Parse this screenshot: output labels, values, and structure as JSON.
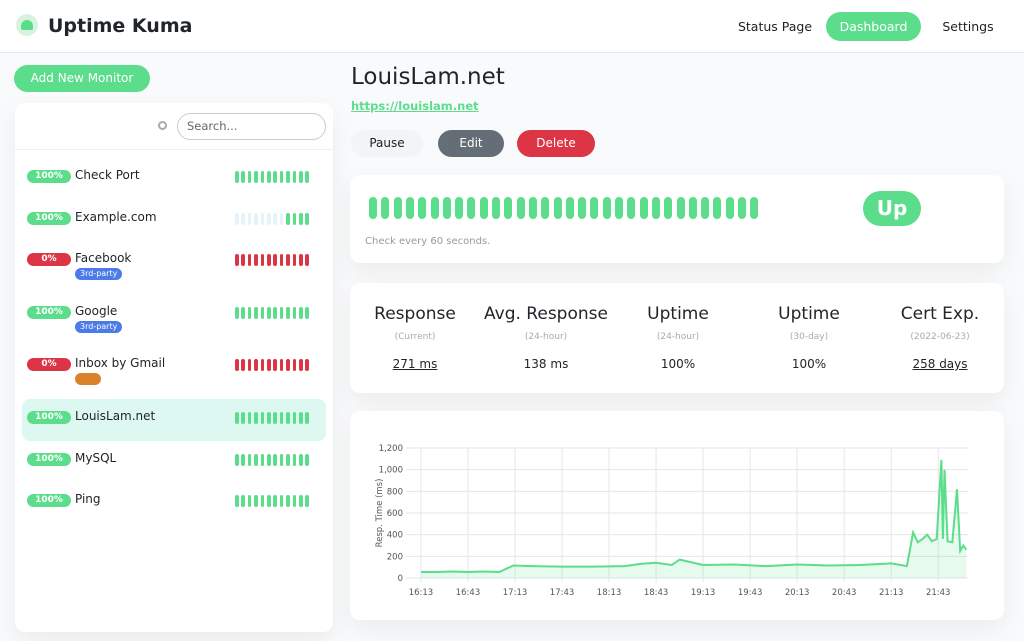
{
  "header": {
    "title": "Uptime Kuma",
    "nav": [
      "Status Page",
      "Dashboard",
      "Settings"
    ]
  },
  "sidebar": {
    "add_button": "Add New Monitor",
    "search_placeholder": "Search...",
    "monitors": [
      {
        "uptime": "100%",
        "uptime_color": "#5cdd8b",
        "name": "Check Port",
        "beats": [
          "#5cdd8b",
          "#5cdd8b",
          "#5cdd8b",
          "#5cdd8b",
          "#5cdd8b",
          "#5cdd8b",
          "#5cdd8b",
          "#5cdd8b",
          "#5cdd8b",
          "#5cdd8b",
          "#5cdd8b",
          "#5cdd8b"
        ]
      },
      {
        "uptime": "100%",
        "uptime_color": "#5cdd8b",
        "name": "Example.com",
        "beats": [
          "#e6f3f8",
          "#e6f3f8",
          "#e6f3f8",
          "#e6f3f8",
          "#e6f3f8",
          "#e6f3f8",
          "#e6f3f8",
          "#e6f3f8",
          "#5cdd8b",
          "#5cdd8b",
          "#5cdd8b",
          "#5cdd8b"
        ]
      },
      {
        "uptime": "0%",
        "uptime_color": "#dc3545",
        "name": "Facebook",
        "tag": {
          "label": "3rd-party",
          "color": "#4c7be8"
        },
        "beats": [
          "#dc3545",
          "#dc3545",
          "#dc3545",
          "#dc3545",
          "#dc3545",
          "#dc3545",
          "#dc3545",
          "#dc3545",
          "#dc3545",
          "#dc3545",
          "#dc3545",
          "#dc3545"
        ]
      },
      {
        "uptime": "100%",
        "uptime_color": "#5cdd8b",
        "name": "Google",
        "tag": {
          "label": "3rd-party",
          "color": "#4c7be8"
        },
        "beats": [
          "#5cdd8b",
          "#5cdd8b",
          "#5cdd8b",
          "#5cdd8b",
          "#5cdd8b",
          "#5cdd8b",
          "#5cdd8b",
          "#5cdd8b",
          "#5cdd8b",
          "#5cdd8b",
          "#5cdd8b",
          "#5cdd8b"
        ]
      },
      {
        "uptime": "0%",
        "uptime_color": "#dc3545",
        "name": "Inbox by Gmail",
        "tag": {
          "color": "#d9822b"
        },
        "beats": [
          "#dc3545",
          "#dc3545",
          "#dc3545",
          "#dc3545",
          "#dc3545",
          "#dc3545",
          "#dc3545",
          "#dc3545",
          "#dc3545",
          "#dc3545",
          "#dc3545",
          "#dc3545"
        ]
      },
      {
        "uptime": "100%",
        "uptime_color": "#5cdd8b",
        "name": "LouisLam.net",
        "active": true,
        "beats": [
          "#5cdd8b",
          "#5cdd8b",
          "#5cdd8b",
          "#5cdd8b",
          "#5cdd8b",
          "#5cdd8b",
          "#5cdd8b",
          "#5cdd8b",
          "#5cdd8b",
          "#5cdd8b",
          "#5cdd8b",
          "#5cdd8b"
        ]
      },
      {
        "uptime": "100%",
        "uptime_color": "#5cdd8b",
        "name": "MySQL",
        "beats": [
          "#5cdd8b",
          "#5cdd8b",
          "#5cdd8b",
          "#5cdd8b",
          "#5cdd8b",
          "#5cdd8b",
          "#5cdd8b",
          "#5cdd8b",
          "#5cdd8b",
          "#5cdd8b",
          "#5cdd8b",
          "#5cdd8b"
        ]
      },
      {
        "uptime": "100%",
        "uptime_color": "#5cdd8b",
        "name": "Ping",
        "beats": [
          "#5cdd8b",
          "#5cdd8b",
          "#5cdd8b",
          "#5cdd8b",
          "#5cdd8b",
          "#5cdd8b",
          "#5cdd8b",
          "#5cdd8b",
          "#5cdd8b",
          "#5cdd8b",
          "#5cdd8b",
          "#5cdd8b"
        ]
      }
    ]
  },
  "detail": {
    "title": "LouisLam.net",
    "url": "https://louislam.net",
    "buttons": [
      {
        "label": "Pause",
        "color": "#f2f4f7",
        "text": "#222"
      },
      {
        "label": "Edit",
        "color": "#656d76",
        "text": "#fff"
      },
      {
        "label": "Delete",
        "color": "#dc3545",
        "text": "#fff"
      }
    ],
    "beat_count": 32,
    "beat_color": "#5cdd8b",
    "status": "Up",
    "check_note": "Check every 60 seconds.",
    "stats": [
      {
        "label": "Response",
        "sub": "(Current)",
        "value": "271 ms",
        "link": true
      },
      {
        "label": "Avg. Response",
        "sub": "(24-hour)",
        "value": "138 ms"
      },
      {
        "label": "Uptime",
        "sub": "(24-hour)",
        "value": "100%"
      },
      {
        "label": "Uptime",
        "sub": "(30-day)",
        "value": "100%"
      },
      {
        "label": "Cert Exp.",
        "sub": "(2022-06-23)",
        "value": "258 days",
        "link": true
      }
    ]
  },
  "chart_data": {
    "type": "line",
    "ylabel": "Resp. Time (ms)",
    "color": "#5cdd8b",
    "grid": true,
    "x": [
      "16:13",
      "16:23",
      "16:33",
      "16:43",
      "16:53",
      "17:03",
      "17:12",
      "17:23",
      "17:43",
      "18:03",
      "18:23",
      "18:33",
      "18:43",
      "18:53",
      "18:58",
      "19:13",
      "19:33",
      "19:53",
      "20:13",
      "20:33",
      "20:53",
      "21:13",
      "21:23",
      "21:27",
      "21:30",
      "21:33",
      "21:36",
      "21:39",
      "21:42",
      "21:45",
      "21:46",
      "21:47",
      "21:49",
      "21:52",
      "21:55",
      "21:57",
      "21:59",
      "22:01"
    ],
    "values": [
      55,
      55,
      60,
      55,
      60,
      55,
      115,
      110,
      105,
      105,
      110,
      130,
      140,
      120,
      170,
      120,
      125,
      110,
      125,
      115,
      120,
      135,
      110,
      420,
      330,
      360,
      400,
      340,
      360,
      1090,
      360,
      1000,
      340,
      330,
      820,
      250,
      300,
      260
    ],
    "xlim": [
      "16:06",
      "22:02"
    ],
    "xticks": [
      "16:13",
      "16:43",
      "17:13",
      "17:43",
      "18:13",
      "18:43",
      "19:13",
      "19:43",
      "20:13",
      "20:43",
      "21:13",
      "21:43"
    ],
    "ylim": [
      0,
      1200
    ],
    "yticks": [
      0,
      200,
      400,
      600,
      800,
      {
        "value": 1000,
        "label": "1,000"
      },
      {
        "value": 1200,
        "label": "1,200"
      }
    ]
  }
}
